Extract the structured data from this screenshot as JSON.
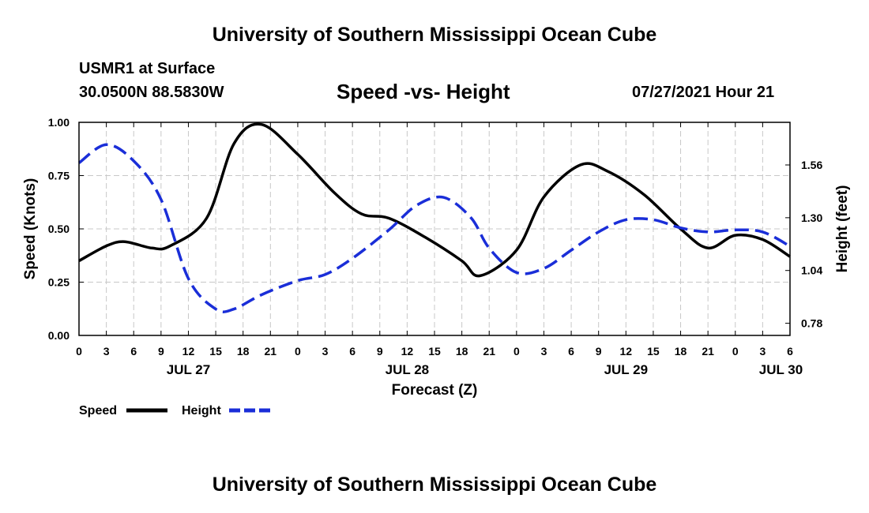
{
  "header": {
    "title_top": "University of Southern Mississippi Ocean Cube",
    "station": "USMR1 at Surface",
    "coords": "30.0500N  88.5830W",
    "chart_title": "Speed -vs- Height",
    "datetime": "07/27/2021 Hour 21",
    "title_bottom": "University of Southern Mississippi Ocean Cube"
  },
  "chart_data": {
    "type": "line",
    "title": "Speed -vs- Height",
    "xlabel": "Forecast (Z)",
    "ylabel": "Speed (Knots)",
    "y2label": "Height (feet)",
    "grid": true,
    "legend_position": "bottom-left",
    "xlim": [
      0,
      78
    ],
    "ylim": [
      0,
      1.0
    ],
    "y2lim": [
      0.72,
      1.77
    ],
    "x_tick_labels": [
      "0",
      "3",
      "6",
      "9",
      "12",
      "15",
      "18",
      "21",
      "0",
      "3",
      "6",
      "9",
      "12",
      "15",
      "18",
      "21",
      "0",
      "3",
      "6",
      "9",
      "12",
      "15",
      "18",
      "21",
      "0",
      "3",
      "6"
    ],
    "day_labels": [
      {
        "x": 12,
        "label": "JUL 27"
      },
      {
        "x": 36,
        "label": "JUL 28"
      },
      {
        "x": 60,
        "label": "JUL 29"
      },
      {
        "x": 77,
        "label": "JUL 30"
      }
    ],
    "y_ticks": [
      {
        "value": 0.0,
        "label": "0.00"
      },
      {
        "value": 0.25,
        "label": "0.25"
      },
      {
        "value": 0.5,
        "label": "0.50"
      },
      {
        "value": 0.75,
        "label": "0.75"
      },
      {
        "value": 1.0,
        "label": "1.00"
      }
    ],
    "y2_ticks": [
      {
        "value": 0.78,
        "label": "0.78"
      },
      {
        "value": 1.04,
        "label": "1.04"
      },
      {
        "value": 1.3,
        "label": "1.30"
      },
      {
        "value": 1.56,
        "label": "1.56"
      }
    ],
    "series": [
      {
        "name": "Speed",
        "axis": "left",
        "color": "#000000",
        "dash": "solid",
        "x": [
          0,
          3,
          5,
          8,
          10,
          14,
          17,
          20,
          24,
          28,
          31,
          34,
          38,
          42,
          44,
          48,
          51,
          55,
          58,
          62,
          66,
          69,
          72,
          75,
          78
        ],
        "values": [
          0.35,
          0.42,
          0.44,
          0.41,
          0.42,
          0.55,
          0.9,
          0.99,
          0.85,
          0.67,
          0.57,
          0.55,
          0.46,
          0.35,
          0.28,
          0.4,
          0.65,
          0.8,
          0.77,
          0.66,
          0.5,
          0.41,
          0.47,
          0.45,
          0.37
        ]
      },
      {
        "name": "Height",
        "axis": "right",
        "color": "#1a2ed8",
        "dash": "dashed",
        "x": [
          0,
          3,
          6,
          9,
          12,
          15,
          17,
          20,
          24,
          27,
          30,
          34,
          37,
          40,
          43,
          45,
          48,
          51,
          54,
          57,
          60,
          63,
          66,
          69,
          72,
          75,
          78
        ],
        "values": [
          1.57,
          1.66,
          1.58,
          1.39,
          1.0,
          0.85,
          0.85,
          0.92,
          0.99,
          1.02,
          1.1,
          1.24,
          1.36,
          1.4,
          1.3,
          1.15,
          1.03,
          1.05,
          1.14,
          1.23,
          1.29,
          1.29,
          1.25,
          1.23,
          1.24,
          1.23,
          1.16
        ]
      }
    ]
  }
}
